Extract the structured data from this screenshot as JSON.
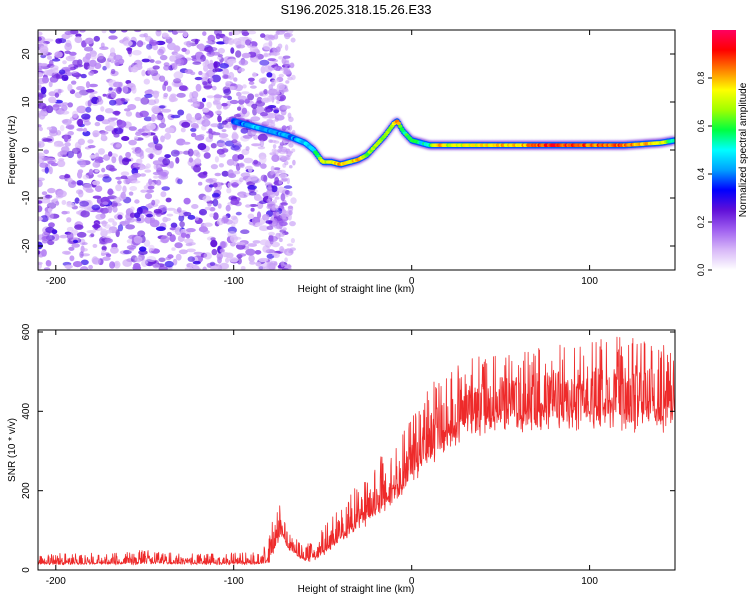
{
  "title": "S196.2025.318.15.26.E33",
  "chart_data": [
    {
      "type": "heatmap",
      "name": "spectrogram",
      "xlabel": "Height of straight line (km)",
      "ylabel": "Frequency (Hz)",
      "xlim": [
        -210,
        148
      ],
      "ylim": [
        -25,
        25
      ],
      "xticks": [
        -200,
        -100,
        0,
        100
      ],
      "yticks": [
        -20,
        -10,
        0,
        10,
        20
      ],
      "colorbar": {
        "label": "Normalized spectral amplitude",
        "range": [
          0.0,
          1.0
        ],
        "ticks": [
          0.0,
          0.2,
          0.4,
          0.6,
          0.8
        ],
        "tick_labels": [
          "0.0",
          "0.2",
          "0.4",
          "0.6",
          "0.8"
        ],
        "colors": [
          "#ffffff",
          "#d8b8f8",
          "#a060f0",
          "#6010d8",
          "#0000ff",
          "#00a0ff",
          "#00ffff",
          "#00ff40",
          "#a0ff00",
          "#ffff00",
          "#ff8000",
          "#ff0000",
          "#ff0060"
        ]
      },
      "noise_region_km": [
        -210,
        -75
      ],
      "signal_trace": {
        "x": [
          -100,
          -90,
          -80,
          -70,
          -60,
          -55,
          -50,
          -45,
          -40,
          -35,
          -30,
          -25,
          -20,
          -15,
          -10,
          -8,
          -5,
          0,
          5,
          10,
          15,
          20,
          40,
          60,
          80,
          100,
          120,
          140,
          148
        ],
        "y": [
          6,
          5,
          4,
          3,
          1.5,
          0,
          -2.5,
          -2.5,
          -3,
          -2.5,
          -2,
          -1,
          1,
          3,
          5.5,
          6,
          4,
          2,
          1.5,
          1,
          1,
          1,
          1,
          1,
          1,
          1,
          1,
          1.5,
          2
        ],
        "amplitude": [
          0.35,
          0.45,
          0.45,
          0.4,
          0.45,
          0.5,
          0.7,
          0.75,
          0.8,
          0.75,
          0.8,
          0.65,
          0.7,
          0.65,
          0.75,
          0.8,
          0.55,
          0.6,
          0.5,
          0.55,
          0.85,
          0.7,
          0.75,
          0.8,
          0.9,
          0.85,
          0.85,
          0.75,
          0.5
        ]
      }
    },
    {
      "type": "line",
      "name": "snr",
      "xlabel": "Height of straight line (km)",
      "ylabel": "SNR (10 * v/v)",
      "xlim": [
        -210,
        148
      ],
      "ylim": [
        0,
        605
      ],
      "xticks": [
        -200,
        -100,
        0,
        100
      ],
      "yticks": [
        0,
        200,
        400,
        600
      ],
      "color": "#ee2a2a",
      "envelope": {
        "x": [
          -210,
          -180,
          -150,
          -120,
          -95,
          -85,
          -80,
          -78,
          -75,
          -73,
          -70,
          -65,
          -60,
          -55,
          -50,
          -45,
          -40,
          -35,
          -30,
          -25,
          -20,
          -15,
          -10,
          -5,
          0,
          5,
          10,
          15,
          20,
          25,
          30,
          40,
          50,
          60,
          70,
          80,
          90,
          100,
          110,
          120,
          130,
          140,
          148
        ],
        "base": [
          15,
          15,
          15,
          15,
          15,
          15,
          20,
          40,
          80,
          100,
          60,
          40,
          25,
          25,
          40,
          60,
          80,
          100,
          120,
          130,
          150,
          170,
          200,
          220,
          250,
          280,
          300,
          320,
          340,
          360,
          380,
          390,
          400,
          400,
          400,
          410,
          400,
          410,
          405,
          400,
          410,
          405,
          400
        ],
        "peak": [
          40,
          45,
          50,
          40,
          45,
          45,
          80,
          140,
          175,
          150,
          100,
          80,
          60,
          80,
          110,
          130,
          170,
          190,
          220,
          250,
          270,
          300,
          320,
          350,
          390,
          420,
          460,
          490,
          500,
          520,
          530,
          540,
          550,
          545,
          560,
          570,
          575,
          585,
          600,
          590,
          595,
          570,
          560
        ]
      }
    }
  ]
}
